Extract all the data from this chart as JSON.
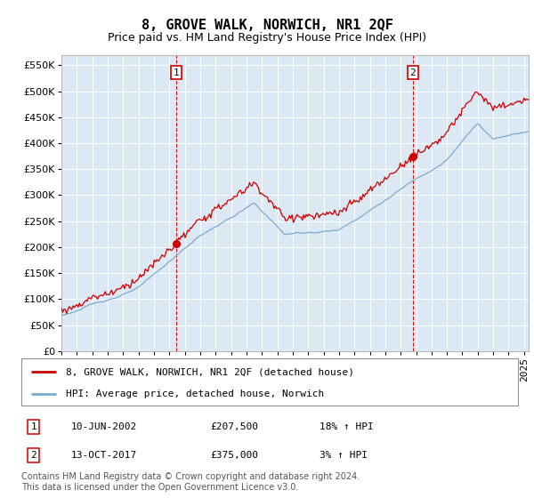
{
  "title": "8, GROVE WALK, NORWICH, NR1 2QF",
  "subtitle": "Price paid vs. HM Land Registry's House Price Index (HPI)",
  "ylabel_ticks": [
    0,
    50000,
    100000,
    150000,
    200000,
    250000,
    300000,
    350000,
    400000,
    450000,
    500000,
    550000
  ],
  "ylim": [
    0,
    570000
  ],
  "xlim_start": 1995.0,
  "xlim_end": 2025.3,
  "plot_bg_color": "#dce9f5",
  "grid_color": "#ffffff",
  "red_line_color": "#cc0000",
  "blue_line_color": "#7aaad0",
  "marker1_year": 2002.44,
  "marker1_price": 207500,
  "marker2_year": 2017.78,
  "marker2_price": 375000,
  "legend_label_red": "8, GROVE WALK, NORWICH, NR1 2QF (detached house)",
  "legend_label_blue": "HPI: Average price, detached house, Norwich",
  "annotation1_label": "1",
  "annotation1_date": "10-JUN-2002",
  "annotation1_price": "£207,500",
  "annotation1_hpi": "18% ↑ HPI",
  "annotation2_label": "2",
  "annotation2_date": "13-OCT-2017",
  "annotation2_price": "£375,000",
  "annotation2_hpi": "3% ↑ HPI",
  "copyright_text": "Contains HM Land Registry data © Crown copyright and database right 2024.\nThis data is licensed under the Open Government Licence v3.0.",
  "title_fontsize": 11,
  "subtitle_fontsize": 9,
  "tick_fontsize": 8,
  "legend_fontsize": 8,
  "annotation_fontsize": 8,
  "copyright_fontsize": 7
}
